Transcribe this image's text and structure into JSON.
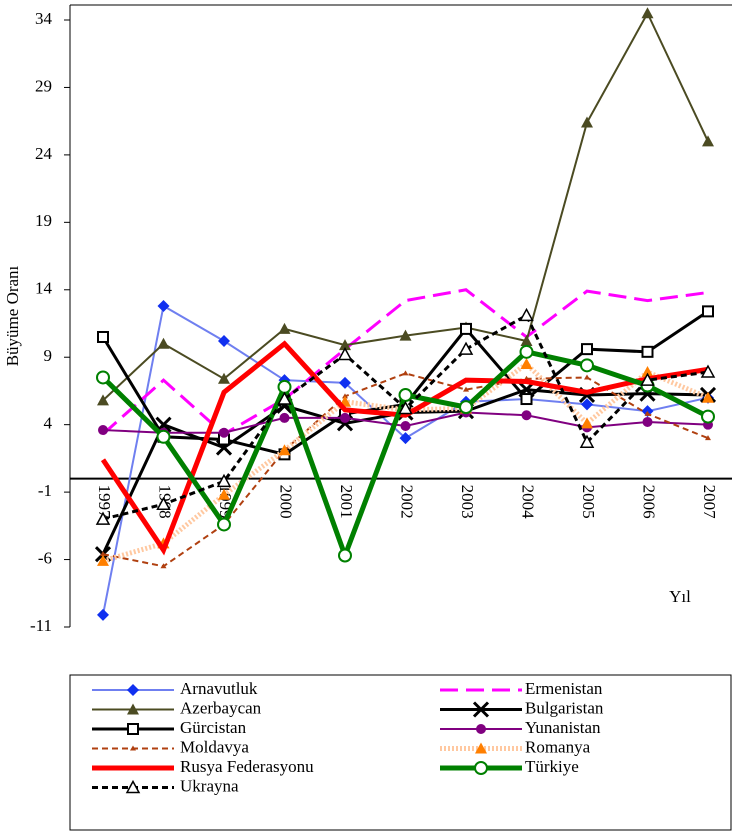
{
  "chart_data": {
    "type": "line",
    "y_label": "Büyüme Oranı",
    "x_label": "Yıl",
    "categories": [
      "1997",
      "1998",
      "1999",
      "2000",
      "2001",
      "2002",
      "2003",
      "2004",
      "2005",
      "2006",
      "2007"
    ],
    "ylim": [
      -11,
      34
    ],
    "yticks": [
      -11,
      -6,
      -1,
      4,
      9,
      14,
      19,
      24,
      29,
      34
    ],
    "series": [
      {
        "name": "Arnavutluk",
        "color": "#6f7ff0",
        "width": 2,
        "marker": "diamond",
        "marker_color": "#1030f0",
        "values": [
          -10.1,
          12.8,
          10.2,
          7.3,
          7.1,
          3.0,
          5.7,
          5.9,
          5.5,
          5.0,
          6.0
        ]
      },
      {
        "name": "Ermenistan",
        "color": "#ff00ff",
        "width": 3,
        "dash": "18,8",
        "marker": "none",
        "values": [
          3.3,
          7.3,
          3.3,
          5.9,
          9.6,
          13.2,
          14.0,
          10.5,
          13.9,
          13.2,
          13.8
        ]
      },
      {
        "name": "Azerbaycan",
        "color": "#4b4b22",
        "width": 2,
        "marker": "triangle",
        "values": [
          5.8,
          10.0,
          7.4,
          11.1,
          9.9,
          10.6,
          11.2,
          10.2,
          26.4,
          34.5,
          25.0
        ]
      },
      {
        "name": "Bulgaristan",
        "color": "#000000",
        "width": 3,
        "marker": "x",
        "values": [
          -5.6,
          4.0,
          2.3,
          5.4,
          4.1,
          4.9,
          5.0,
          6.6,
          6.2,
          6.3,
          6.2
        ]
      },
      {
        "name": "Gürcistan",
        "color": "#000000",
        "width": 3,
        "marker": "square",
        "values": [
          10.5,
          3.1,
          2.9,
          1.8,
          4.8,
          5.5,
          11.1,
          5.9,
          9.6,
          9.4,
          12.4
        ]
      },
      {
        "name": "Yunanistan",
        "color": "#800080",
        "width": 2,
        "marker": "circle",
        "values": [
          3.6,
          3.4,
          3.4,
          4.5,
          4.5,
          3.9,
          4.9,
          4.7,
          3.8,
          4.2,
          4.0
        ]
      },
      {
        "name": "Moldavya",
        "color": "#b04010",
        "width": 2,
        "dash": "6,4",
        "marker": "small",
        "values": [
          -5.6,
          -6.5,
          -3.4,
          2.1,
          6.1,
          7.8,
          6.6,
          7.4,
          7.5,
          4.8,
          3.0
        ]
      },
      {
        "name": "Romanya",
        "color": "#ffc8a0",
        "width": 5,
        "dash": "2,2",
        "marker": "triangle",
        "marker_color": "#ff7f00",
        "values": [
          -6.1,
          -4.8,
          -1.2,
          2.1,
          5.7,
          5.1,
          5.2,
          8.5,
          4.1,
          7.9,
          6.0
        ]
      },
      {
        "name": "Rusya Federasyonu",
        "color": "#ff0000",
        "width": 5,
        "marker": "none",
        "values": [
          1.4,
          -5.3,
          6.4,
          10.0,
          5.1,
          4.7,
          7.3,
          7.2,
          6.4,
          7.4,
          8.1
        ]
      },
      {
        "name": "Türkiye",
        "color": "#008000",
        "width": 5,
        "marker": "circle",
        "values": [
          7.5,
          3.1,
          -3.4,
          6.8,
          -5.7,
          6.2,
          5.3,
          9.4,
          8.4,
          6.9,
          4.6
        ]
      },
      {
        "name": "Ukrayna",
        "color": "#000000",
        "width": 3,
        "dash": "6,4",
        "marker": "triangle-open",
        "values": [
          -3.0,
          -1.9,
          -0.2,
          5.9,
          9.2,
          5.2,
          9.6,
          12.1,
          2.7,
          7.3,
          7.9
        ]
      }
    ]
  }
}
